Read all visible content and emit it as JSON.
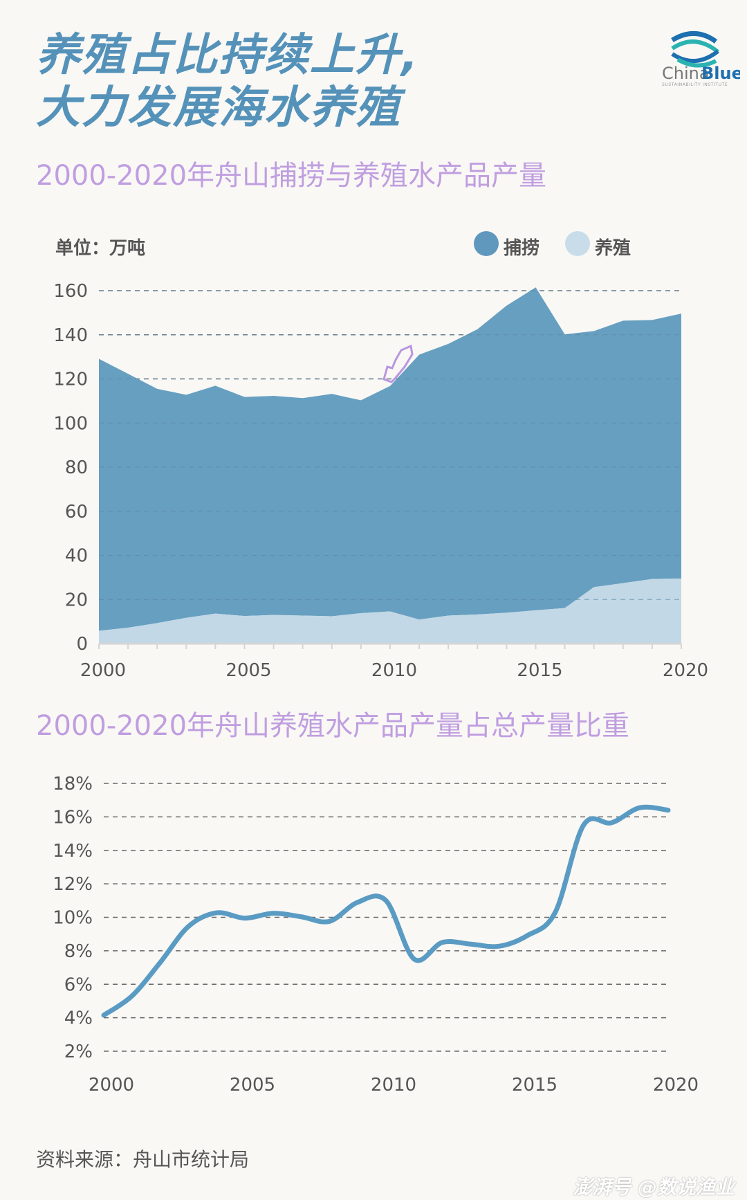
{
  "header": {
    "title_line1": "养殖占比持续上升,",
    "title_line2": "大力发展海水养殖",
    "logo": {
      "name_part1": "China",
      "name_part2": "Blue",
      "tagline": "SUSTAINABILITY INSTITUTE"
    }
  },
  "colors": {
    "background": "#f9f8f5",
    "title": "#5592b9",
    "subtitle": "#c09ee0",
    "capture": "#679fc1",
    "aquaculture": "#c2d8e6",
    "line": "#5a9bc4",
    "text": "#555555"
  },
  "chart_data": [
    {
      "type": "area",
      "stacked": true,
      "title": "2000-2020年舟山捕捞与养殖水产品产量",
      "unit_label": "单位：万吨",
      "x": [
        2000,
        2001,
        2002,
        2003,
        2004,
        2005,
        2006,
        2007,
        2008,
        2009,
        2010,
        2011,
        2012,
        2013,
        2014,
        2015,
        2016,
        2017,
        2018,
        2019,
        2020
      ],
      "x_ticks": [
        "2000",
        "2005",
        "2010",
        "2015",
        "2020"
      ],
      "y_ticks": [
        "0",
        "20",
        "40",
        "60",
        "80",
        "100",
        "120",
        "140",
        "160"
      ],
      "ylim": [
        0,
        160
      ],
      "grid": "horizontal-dashed",
      "legend_position": "top-right",
      "series": [
        {
          "name": "捕捞",
          "color": "#679fc1",
          "values": [
            123.3,
            115.1,
            106.2,
            101.1,
            103.3,
            99.3,
            99.3,
            98.6,
            100.8,
            96.5,
            102.2,
            120.1,
            123.2,
            129.3,
            139.2,
            146.4,
            124.1,
            116.1,
            119.0,
            117.4,
            120.1
          ]
        },
        {
          "name": "养殖",
          "color": "#c2d8e6",
          "values": [
            5.8,
            7.2,
            9.3,
            11.7,
            13.6,
            12.5,
            13.0,
            12.7,
            12.4,
            13.8,
            14.6,
            10.9,
            12.7,
            13.2,
            14.0,
            15.1,
            16.1,
            25.6,
            27.4,
            29.3,
            29.5
          ]
        }
      ]
    },
    {
      "type": "line",
      "smooth": true,
      "title": "2000-2020年舟山养殖水产品产量占总产量比重",
      "x": [
        2000,
        2001,
        2002,
        2003,
        2004,
        2005,
        2006,
        2007,
        2008,
        2009,
        2010,
        2011,
        2012,
        2013,
        2014,
        2015,
        2016,
        2017,
        2018,
        2019,
        2020
      ],
      "x_ticks": [
        "2000",
        "2005",
        "2010",
        "2015",
        "2020"
      ],
      "y_ticks": [
        "2%",
        "4%",
        "6%",
        "8%",
        "10%",
        "12%",
        "14%",
        "16%",
        "18%"
      ],
      "ylim": [
        2,
        18
      ],
      "grid": "horizontal-dashed",
      "series": [
        {
          "color": "#5a9bc4",
          "values": [
            4.15,
            5.3,
            7.3,
            9.45,
            10.27,
            9.95,
            10.24,
            10.03,
            9.76,
            10.9,
            11.0,
            7.5,
            8.5,
            8.4,
            8.27,
            8.9,
            10.3,
            15.5,
            15.65,
            16.55,
            16.4
          ]
        }
      ]
    }
  ],
  "footer": {
    "source": "资料来源：舟山市统计局",
    "watermark": "澎湃号 @数说渔业"
  }
}
